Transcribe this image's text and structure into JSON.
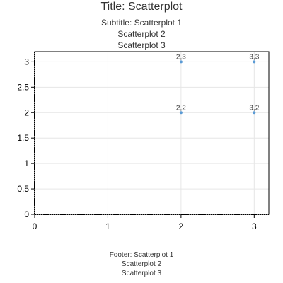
{
  "chart_data": {
    "type": "scatter",
    "title": "Title: Scatterplot",
    "subtitle": [
      "Subtitle: Scatterplot 1",
      "Scatterplot 2",
      "Scatterplot 3"
    ],
    "footer": [
      "Footer: Scatterplot 1",
      "Scatterplot 2",
      "Scatterplot 3"
    ],
    "xlabel": "",
    "ylabel": "",
    "xlim": [
      0,
      3.2
    ],
    "ylim": [
      0,
      3.2
    ],
    "x_ticks": [
      "0",
      "1",
      "2",
      "3"
    ],
    "y_ticks": [
      "0",
      "0.5",
      "1",
      "1.5",
      "2",
      "2.5",
      "3"
    ],
    "grid": true,
    "point_color": "#5b9bd5",
    "series": [
      {
        "points": [
          {
            "x": 2,
            "y": 3,
            "label": "2,3"
          },
          {
            "x": 3,
            "y": 3,
            "label": "3,3"
          },
          {
            "x": 2,
            "y": 2,
            "label": "2,2"
          },
          {
            "x": 3,
            "y": 2,
            "label": "3,2"
          }
        ]
      }
    ]
  }
}
